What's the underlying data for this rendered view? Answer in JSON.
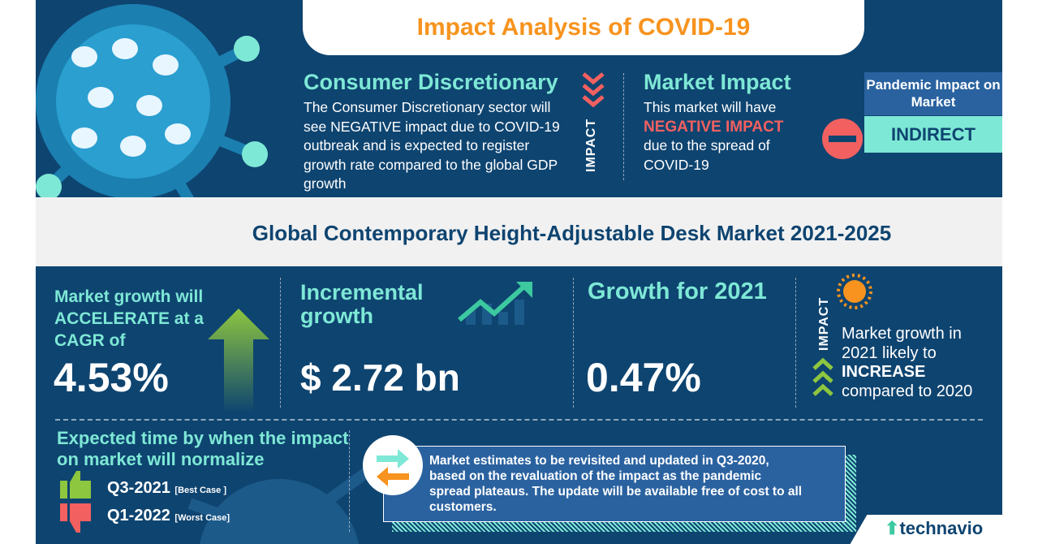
{
  "header": {
    "title": "Impact Analysis of COVID-19"
  },
  "sector": {
    "title": "Consumer Discretionary",
    "text": "The Consumer Discretionary sector will see NEGATIVE impact due to COVID-19 outbreak and is expected to register  growth rate compared to the global GDP growth",
    "impact_label": "IMPACT"
  },
  "market_impact": {
    "title": "Market Impact",
    "line1": "This market will have",
    "highlight": "NEGATIVE IMPACT",
    "line2": "due to the spread of COVID-19"
  },
  "pandemic": {
    "label": "Pandemic Impact on Market",
    "value": "INDIRECT"
  },
  "report_title": "Global Contemporary Height-Adjustable Desk Market 2021-2025",
  "cagr": {
    "label": "Market growth will ACCELERATE at a CAGR of",
    "value": "4.53%"
  },
  "incremental": {
    "label": "Incremental growth",
    "value": "$ 2.72 bn"
  },
  "growth2021": {
    "label": "Growth for 2021",
    "value": "0.47%"
  },
  "outlook": {
    "impact_label": "IMPACT",
    "line1": "Market growth in 2021 likely to",
    "highlight": "INCREASE",
    "line2": "compared to 2020"
  },
  "normalize": {
    "title": "Expected time by when the impact on market will normalize",
    "best": "Q3-2021",
    "best_tag": "[Best Case ]",
    "worst": "Q1-2022",
    "worst_tag": "[Worst Case]"
  },
  "note": "Market estimates to be revisited and updated in Q3-2020, based on the revaluation of the impact as the pandemic spread plateaus. The update will be available free of cost to all customers.",
  "brand": "technavio",
  "colors": {
    "navy": "#0e4470",
    "teal": "#7ee8d6",
    "orange": "#f7931e",
    "red": "#f26060",
    "green": "#8dc63f"
  }
}
